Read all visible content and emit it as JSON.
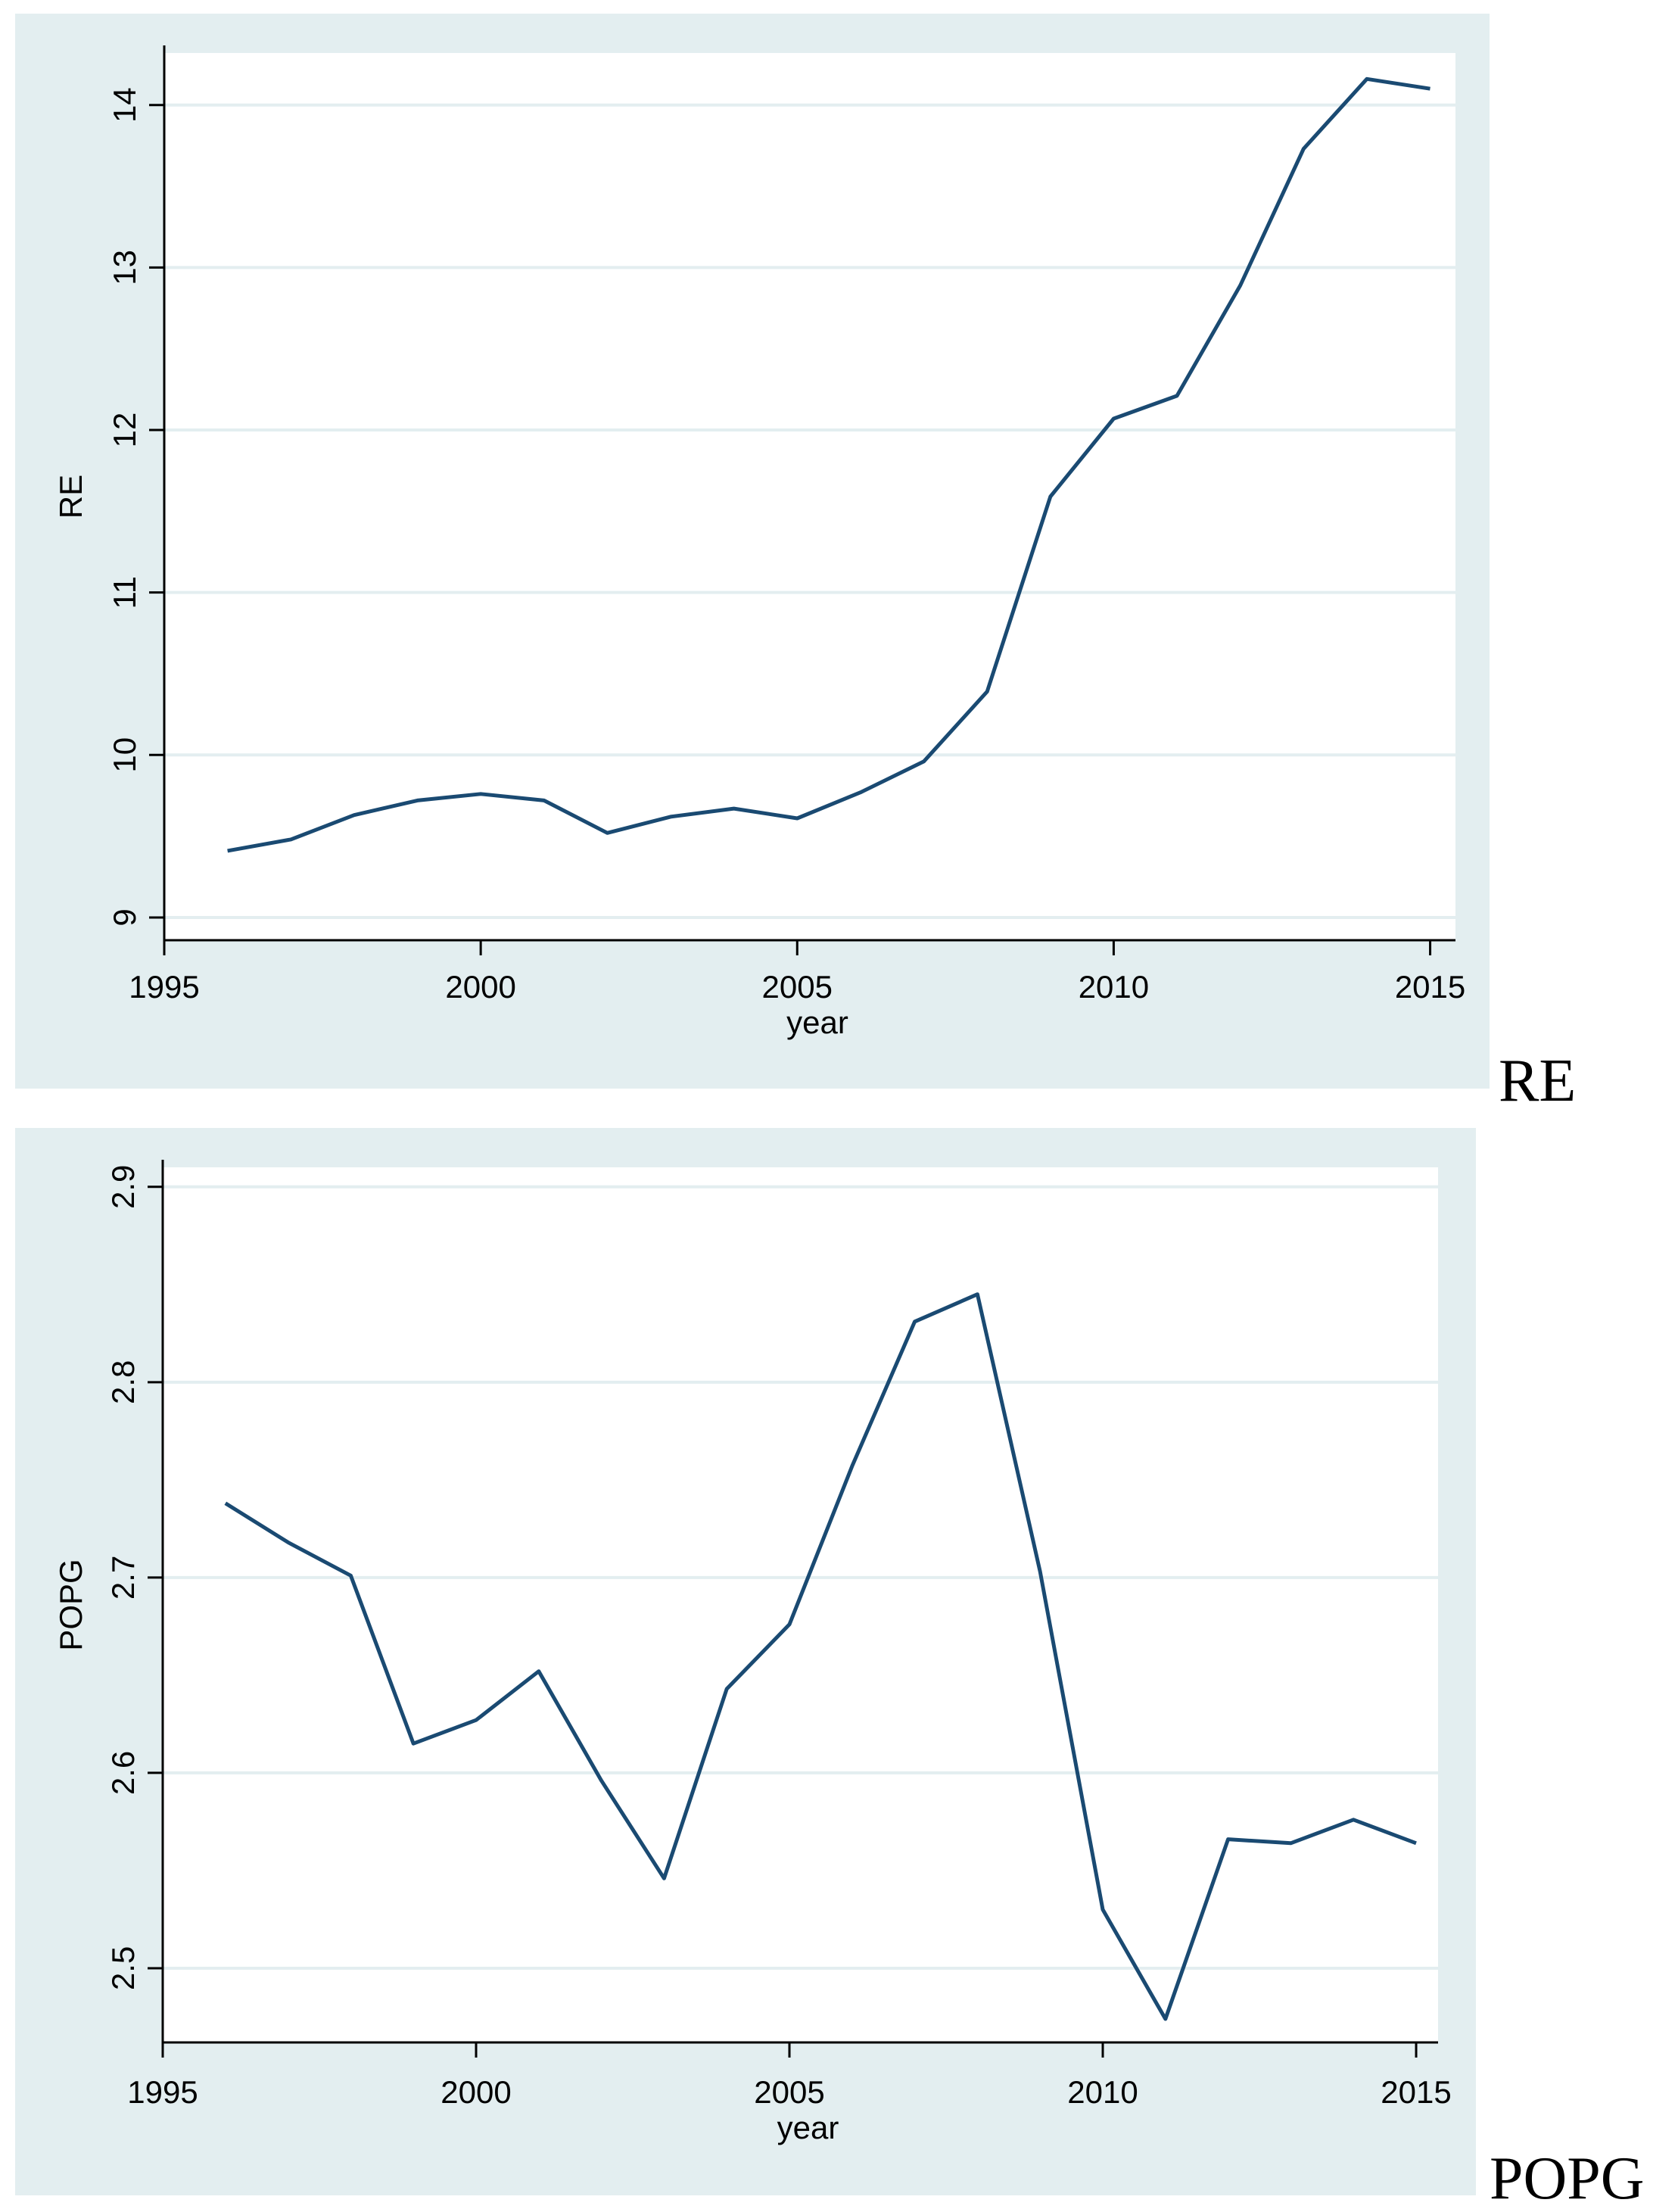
{
  "chart_data": [
    {
      "type": "line",
      "xlabel": "year",
      "ylabel": "RE",
      "xlim": [
        1995,
        2015.4
      ],
      "ylim": [
        8.86,
        14.32
      ],
      "xticks": [
        1995,
        2000,
        2005,
        2010,
        2015
      ],
      "yticks": [
        9,
        10,
        11,
        12,
        13,
        14
      ],
      "ytick_labels": [
        "9",
        "10",
        "11",
        "12",
        "13",
        "14"
      ],
      "grid": true,
      "line_color": "#1a4a72",
      "series": [
        {
          "name": "RE",
          "x": [
            1996,
            1997,
            1998,
            1999,
            2000,
            2001,
            2002,
            2003,
            2004,
            2005,
            2006,
            2007,
            2008,
            2009,
            2010,
            2011,
            2012,
            2013,
            2014,
            2015
          ],
          "values": [
            9.41,
            9.48,
            9.63,
            9.72,
            9.76,
            9.72,
            9.52,
            9.62,
            9.67,
            9.61,
            9.77,
            9.96,
            10.39,
            11.59,
            12.07,
            12.21,
            12.89,
            13.73,
            14.16,
            14.1
          ]
        }
      ],
      "caption": "RE"
    },
    {
      "type": "line",
      "xlabel": "year",
      "ylabel": "POPG",
      "xlim": [
        1995,
        2015.35
      ],
      "ylim": [
        2.462,
        2.91
      ],
      "xticks": [
        1995,
        2000,
        2005,
        2010,
        2015
      ],
      "yticks": [
        2.5,
        2.6,
        2.7,
        2.8,
        2.9
      ],
      "ytick_labels": [
        "2.5",
        "2.6",
        "2.7",
        "2.8",
        "2.9"
      ],
      "grid": true,
      "line_color": "#1a4a72",
      "series": [
        {
          "name": "POPG",
          "x": [
            1996,
            1997,
            1998,
            1999,
            2000,
            2001,
            2002,
            2003,
            2004,
            2005,
            2006,
            2007,
            2008,
            2009,
            2010,
            2011,
            2012,
            2013,
            2014,
            2015
          ],
          "values": [
            2.738,
            2.718,
            2.701,
            2.615,
            2.627,
            2.652,
            2.596,
            2.546,
            2.643,
            2.676,
            2.757,
            2.831,
            2.845,
            2.703,
            2.53,
            2.474,
            2.566,
            2.564,
            2.576,
            2.564
          ]
        }
      ],
      "caption": "POPG"
    }
  ]
}
